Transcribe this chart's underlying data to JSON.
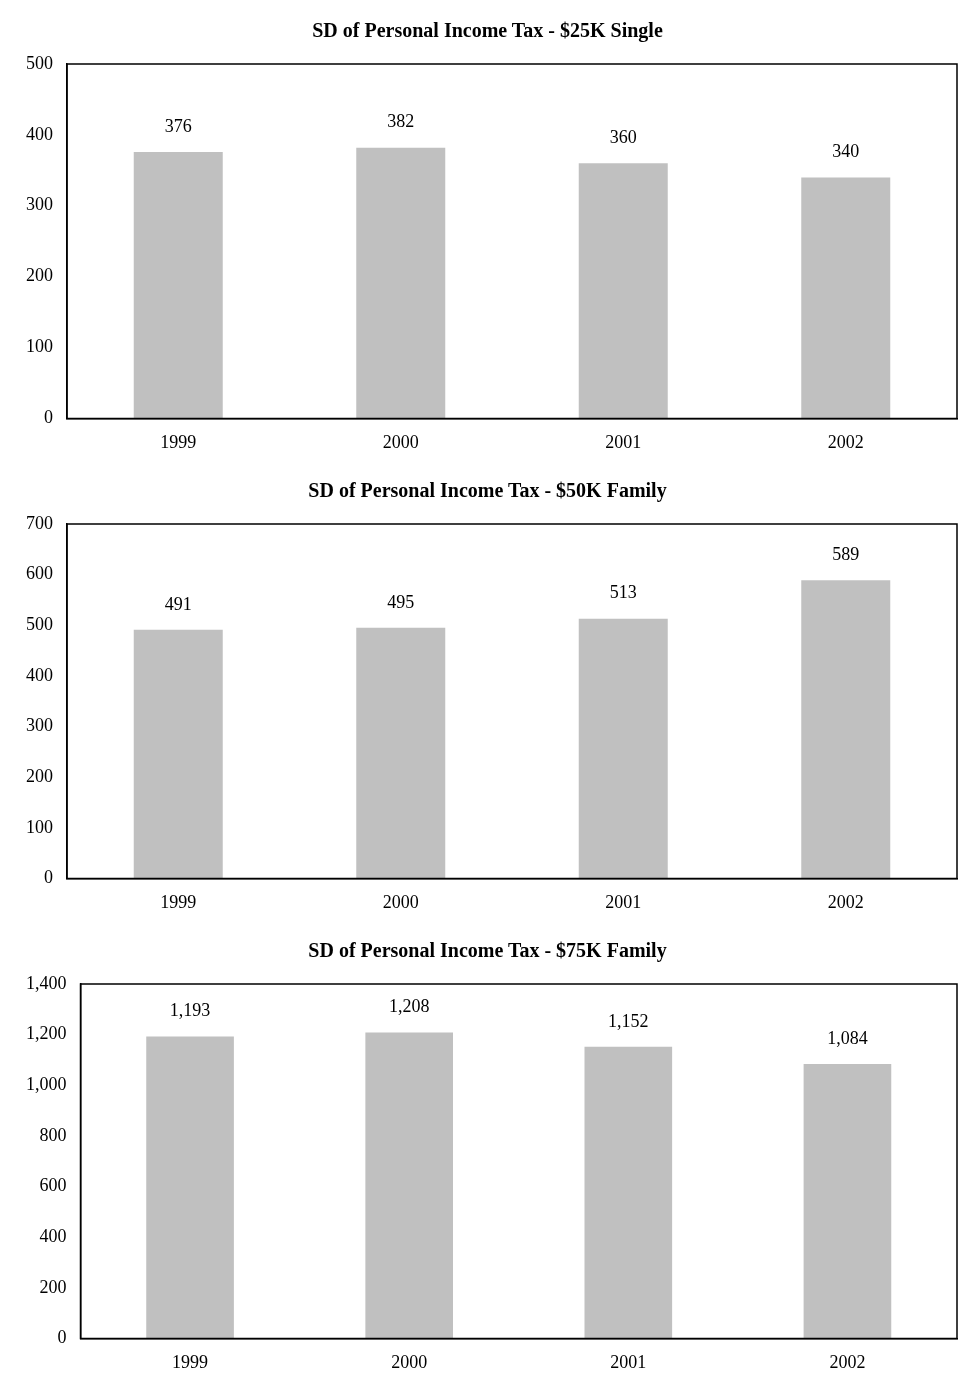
{
  "chart_data": [
    {
      "type": "bar",
      "title": "SD of Personal Income Tax - $25K Single",
      "categories": [
        "1999",
        "2000",
        "2001",
        "2002"
      ],
      "values": [
        376,
        382,
        360,
        340
      ],
      "color": "#c0c0c0",
      "ylim": [
        0,
        500
      ],
      "yticks": [
        0,
        100,
        200,
        300,
        400,
        500
      ],
      "grid": false,
      "data_labels": true
    },
    {
      "type": "bar",
      "title": "SD of Personal Income Tax - $50K Family",
      "categories": [
        "1999",
        "2000",
        "2001",
        "2002"
      ],
      "values": [
        491,
        495,
        513,
        589
      ],
      "color": "#c0c0c0",
      "ylim": [
        0,
        700
      ],
      "yticks": [
        0,
        100,
        200,
        300,
        400,
        500,
        600,
        700
      ],
      "grid": false,
      "data_labels": true
    },
    {
      "type": "bar",
      "title": "SD of Personal Income Tax - $75K Family",
      "categories": [
        "1999",
        "2000",
        "2001",
        "2002"
      ],
      "values": [
        1193,
        1208,
        1152,
        1084
      ],
      "value_labels": [
        "1,193",
        "1,208",
        "1,152",
        "1,084"
      ],
      "color": "#c0c0c0",
      "ylim": [
        0,
        1400
      ],
      "yticks": [
        0,
        200,
        400,
        600,
        800,
        {
          "value": 1000,
          "label": "1,000"
        },
        {
          "value": 1200,
          "label": "1,200"
        },
        {
          "value": 1400,
          "label": "1,400"
        }
      ],
      "grid": false
    }
  ]
}
